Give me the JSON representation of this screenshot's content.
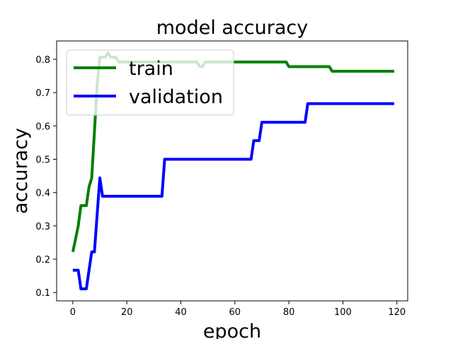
{
  "chart_data": {
    "type": "line",
    "title": "model accuracy",
    "xlabel": "epoch",
    "ylabel": "accuracy",
    "xlim": [
      -6,
      124
    ],
    "ylim": [
      0.075,
      0.855
    ],
    "xticks": [
      0,
      20,
      40,
      60,
      80,
      100,
      120
    ],
    "yticks": [
      0.1,
      0.2,
      0.3,
      0.4,
      0.5,
      0.6,
      0.7,
      0.8
    ],
    "xtick_labels": [
      "0",
      "20",
      "40",
      "60",
      "80",
      "100",
      "120"
    ],
    "ytick_labels": [
      "0.1",
      "0.2",
      "0.3",
      "0.4",
      "0.5",
      "0.6",
      "0.7",
      "0.8"
    ],
    "grid": false,
    "legend_position": "top-left",
    "series": [
      {
        "name": "train",
        "color": "#008000",
        "points": [
          [
            0,
            0.222
          ],
          [
            1,
            0.26
          ],
          [
            2,
            0.3
          ],
          [
            3,
            0.361
          ],
          [
            4,
            0.361
          ],
          [
            5,
            0.361
          ],
          [
            6,
            0.417
          ],
          [
            7,
            0.444
          ],
          [
            8,
            0.583
          ],
          [
            9,
            0.722
          ],
          [
            10,
            0.806
          ],
          [
            11,
            0.806
          ],
          [
            12,
            0.806
          ],
          [
            13,
            0.819
          ],
          [
            14,
            0.806
          ],
          [
            15,
            0.806
          ],
          [
            16,
            0.806
          ],
          [
            17,
            0.792
          ],
          [
            20,
            0.792
          ],
          [
            30,
            0.792
          ],
          [
            40,
            0.792
          ],
          [
            46,
            0.792
          ],
          [
            47,
            0.778
          ],
          [
            48,
            0.778
          ],
          [
            49,
            0.792
          ],
          [
            60,
            0.792
          ],
          [
            70,
            0.792
          ],
          [
            79,
            0.792
          ],
          [
            80,
            0.778
          ],
          [
            90,
            0.778
          ],
          [
            95,
            0.778
          ],
          [
            96,
            0.764
          ],
          [
            110,
            0.764
          ],
          [
            119,
            0.764
          ]
        ]
      },
      {
        "name": "validation",
        "color": "#0000ff",
        "points": [
          [
            0,
            0.167
          ],
          [
            1,
            0.167
          ],
          [
            2,
            0.167
          ],
          [
            3,
            0.111
          ],
          [
            4,
            0.111
          ],
          [
            5,
            0.111
          ],
          [
            6,
            0.167
          ],
          [
            7,
            0.222
          ],
          [
            8,
            0.222
          ],
          [
            9,
            0.333
          ],
          [
            10,
            0.444
          ],
          [
            11,
            0.389
          ],
          [
            20,
            0.389
          ],
          [
            32,
            0.389
          ],
          [
            33,
            0.389
          ],
          [
            34,
            0.5
          ],
          [
            40,
            0.5
          ],
          [
            50,
            0.5
          ],
          [
            60,
            0.5
          ],
          [
            66,
            0.5
          ],
          [
            67,
            0.556
          ],
          [
            69,
            0.556
          ],
          [
            70,
            0.611
          ],
          [
            80,
            0.611
          ],
          [
            86,
            0.611
          ],
          [
            87,
            0.667
          ],
          [
            100,
            0.667
          ],
          [
            110,
            0.667
          ],
          [
            119,
            0.667
          ]
        ]
      }
    ]
  }
}
